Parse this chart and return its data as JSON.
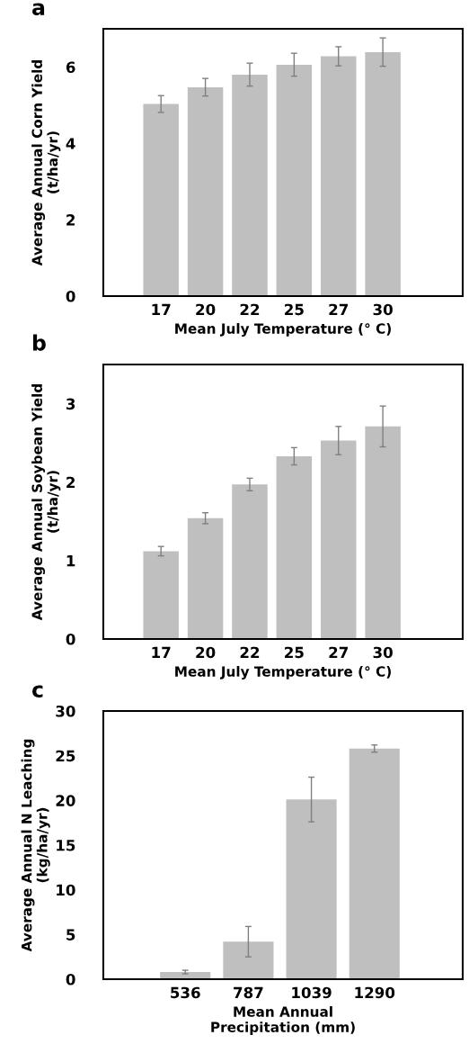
{
  "chart_data": [
    {
      "type": "bar",
      "title": "a",
      "ylabel": "Average Annual Corn Yield\n(t/ha/yr)",
      "xlabel": "Mean July Temperature (° C)",
      "categories": [
        "17",
        "20",
        "22",
        "25",
        "27",
        "30"
      ],
      "values": [
        5.03,
        5.47,
        5.8,
        6.06,
        6.28,
        6.39
      ],
      "errors": [
        0.22,
        0.23,
        0.3,
        0.3,
        0.25,
        0.37
      ],
      "color": "#bfbfbf",
      "ylim": [
        0,
        7
      ],
      "yticks": [
        0,
        2,
        4,
        6
      ],
      "grid": false,
      "legend": false
    },
    {
      "type": "bar",
      "title": "b",
      "ylabel": "Average Annual Soybean Yield\n(t/ha/yr)",
      "xlabel": "Mean July Temperature (° C)",
      "categories": [
        "17",
        "20",
        "22",
        "25",
        "27",
        "30"
      ],
      "values": [
        1.12,
        1.54,
        1.97,
        2.33,
        2.53,
        2.71
      ],
      "errors": [
        0.06,
        0.07,
        0.08,
        0.11,
        0.18,
        0.26
      ],
      "color": "#bfbfbf",
      "ylim": [
        0,
        3.5
      ],
      "yticks": [
        0,
        1,
        2,
        3
      ],
      "grid": false,
      "legend": false
    },
    {
      "type": "bar",
      "title": "c",
      "ylabel": "Average Annual N Leaching\n(kg/ha/yr)",
      "xlabel": "Mean Annual\nPrecipitation (mm)",
      "categories": [
        "536",
        "787",
        "1039",
        "1290"
      ],
      "values": [
        0.8,
        4.2,
        20.1,
        25.8
      ],
      "errors": [
        0.2,
        1.7,
        2.5,
        0.4
      ],
      "color": "#bfbfbf",
      "ylim": [
        0,
        30
      ],
      "yticks": [
        0,
        5,
        10,
        15,
        20,
        25,
        30
      ],
      "grid": false,
      "legend": false
    }
  ]
}
